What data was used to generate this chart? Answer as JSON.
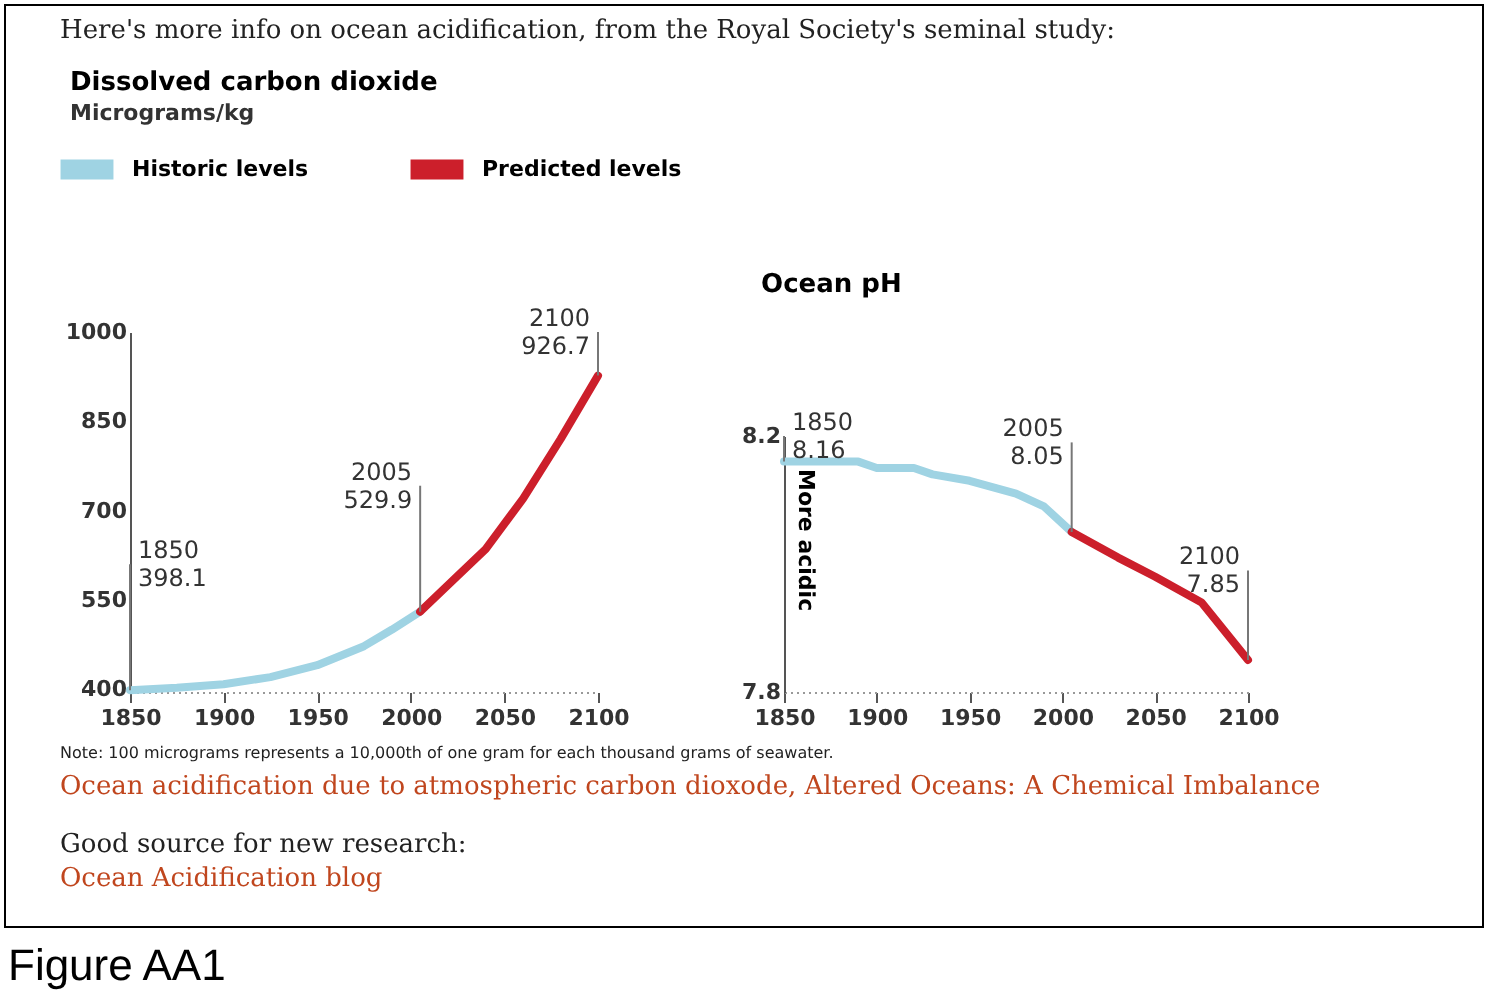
{
  "chart_data": [
    {
      "type": "line",
      "title": "Dissolved carbon dioxide",
      "subtitle": "Micrograms/kg",
      "xlim": [
        1850,
        2100
      ],
      "xticks": [
        1850,
        1900,
        1950,
        2000,
        2050,
        2100
      ],
      "ylim": [
        395,
        1000
      ],
      "yticks": [
        400,
        550,
        700,
        850,
        1000
      ],
      "grid": false,
      "legend": "top",
      "marker": "none",
      "line_style": "solid",
      "series": [
        {
          "name": "Historic levels",
          "color": "#9fd3e3",
          "x": [
            1850,
            1875,
            1900,
            1925,
            1950,
            1975,
            1990,
            2005
          ],
          "values": [
            398.1,
            402,
            408,
            420,
            440,
            472,
            500,
            529.9
          ]
        },
        {
          "name": "Predicted levels",
          "color": "#cc1f2b",
          "x": [
            2005,
            2025,
            2040,
            2060,
            2080,
            2100
          ],
          "values": [
            529.9,
            590,
            635,
            720,
            820,
            926.7
          ]
        }
      ],
      "annotations": [
        {
          "text": "1850\n398.1",
          "x": 1850,
          "y": 398.1
        },
        {
          "text": "2005\n529.9",
          "x": 2005,
          "y": 529.9
        },
        {
          "text": "2100\n926.7",
          "x": 2100,
          "y": 926.7
        },
        "Here's more info on ocean acidification, from the Royal Society's seminal study:",
        "Note: 100 micrograms represents a 10,000th of one gram for each thousand grams of seawater.",
        "Ocean acidification due to atmospheric carbon dioxode, Altered Oceans: A Chemical Imbalance",
        "Good source for new research:",
        "Ocean Acidification blog",
        "Figure AA1"
      ]
    },
    {
      "type": "line",
      "title": "Ocean pH",
      "ylabel": "More acidic",
      "xlim": [
        1850,
        2100
      ],
      "xticks": [
        1850,
        1900,
        1950,
        2000,
        2050,
        2100
      ],
      "ylim": [
        7.8,
        8.2
      ],
      "yticks": [
        7.8,
        8.2
      ],
      "grid": false,
      "marker": "none",
      "line_style": "solid",
      "series": [
        {
          "color": "#9fd3e3",
          "x": [
            1850,
            1890,
            1900,
            1920,
            1930,
            1950,
            1975,
            1990,
            2005
          ],
          "values": [
            8.16,
            8.16,
            8.15,
            8.15,
            8.14,
            8.13,
            8.11,
            8.09,
            8.05
          ]
        },
        {
          "color": "#cc1f2b",
          "x": [
            2005,
            2030,
            2050,
            2075,
            2100
          ],
          "values": [
            8.05,
            8.01,
            7.98,
            7.94,
            7.85
          ]
        }
      ],
      "annotations": [
        {
          "text": "1850\n8.16",
          "x": 1850,
          "y": 8.16
        },
        {
          "text": "2005\n8.05",
          "x": 2005,
          "y": 8.05
        },
        {
          "text": "2100\n7.85",
          "x": 2100,
          "y": 7.85
        }
      ]
    }
  ]
}
